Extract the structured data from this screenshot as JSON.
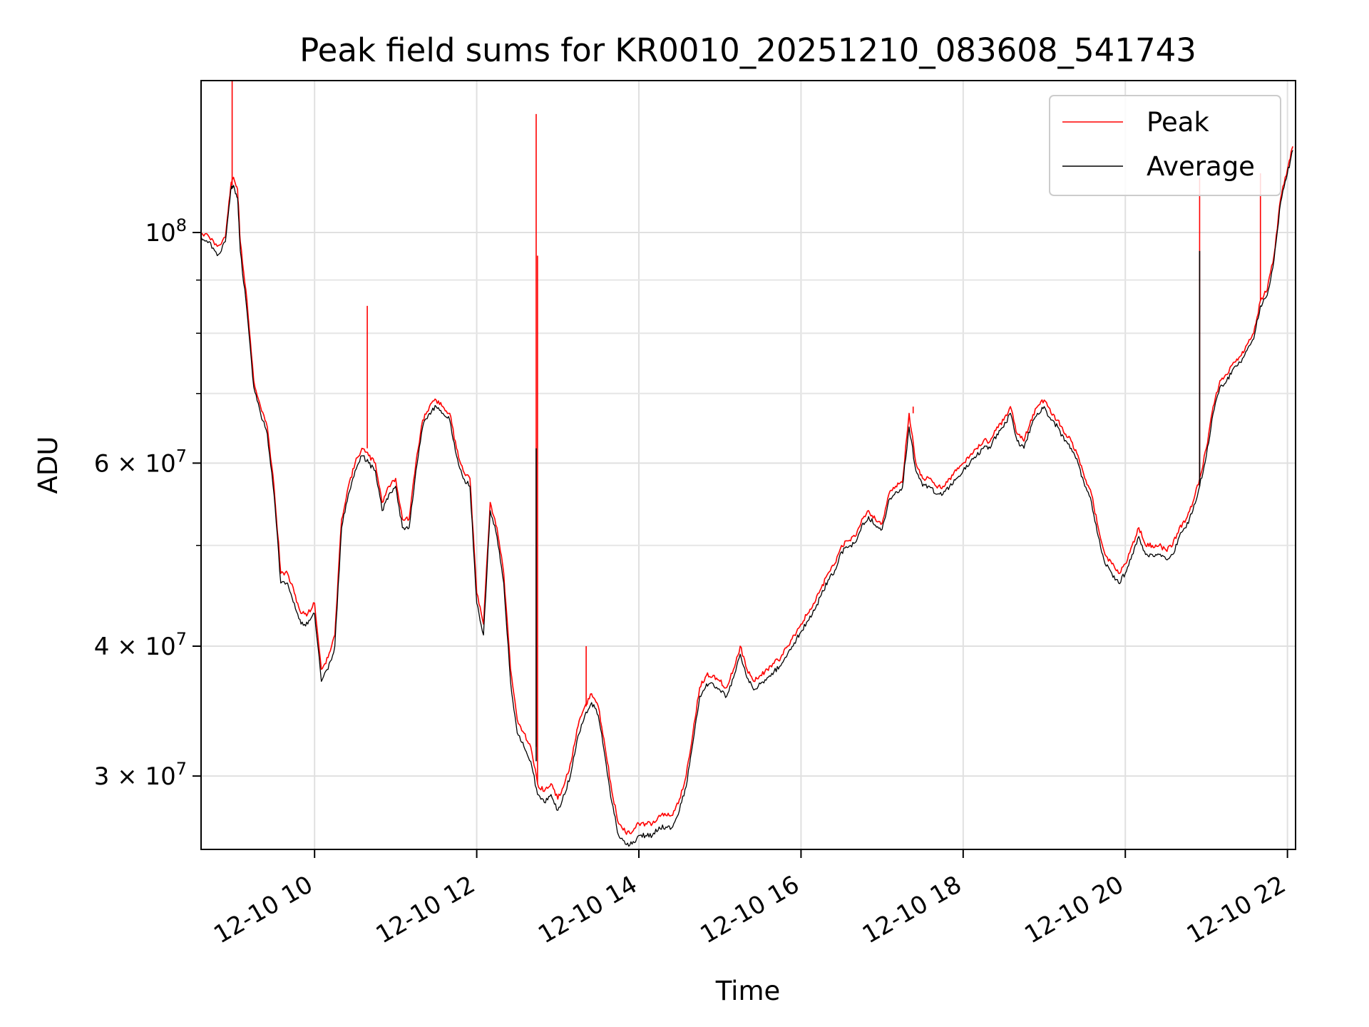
{
  "chart_data": {
    "type": "line",
    "title": "Peak field sums for KR0010_20251210_083608_541743",
    "xlabel": "Time",
    "ylabel": "ADU",
    "yscale": "log",
    "grid": true,
    "legend_position": "top-right",
    "xlim": [
      "12-10 08:36",
      "12-10 22:06"
    ],
    "ylim": [
      25500000,
      140000000
    ],
    "x_ticks": [
      {
        "value": "12-10 10:00",
        "label": "12-10 10"
      },
      {
        "value": "12-10 12:00",
        "label": "12-10 12"
      },
      {
        "value": "12-10 14:00",
        "label": "12-10 14"
      },
      {
        "value": "12-10 16:00",
        "label": "12-10 16"
      },
      {
        "value": "12-10 18:00",
        "label": "12-10 18"
      },
      {
        "value": "12-10 20:00",
        "label": "12-10 20"
      },
      {
        "value": "12-10 22:00",
        "label": "12-10 22"
      }
    ],
    "y_ticks": [
      {
        "value": 100000000,
        "mantissa": "",
        "exponent": "8",
        "base": "10"
      },
      {
        "value": 60000000,
        "mantissa": "6",
        "exponent": "7",
        "base": "10"
      },
      {
        "value": 40000000,
        "mantissa": "4",
        "exponent": "7",
        "base": "10"
      },
      {
        "value": 30000000,
        "mantissa": "3",
        "exponent": "7",
        "base": "10"
      }
    ],
    "y_minor_ticks": [
      50000000,
      70000000,
      80000000,
      90000000
    ],
    "x": [
      "12-10 08:36",
      "12-10 08:42",
      "12-10 08:48",
      "12-10 08:54",
      "12-10 08:58",
      "12-10 09:00",
      "12-10 09:03",
      "12-10 09:05",
      "12-10 09:10",
      "12-10 09:15",
      "12-10 09:20",
      "12-10 09:25",
      "12-10 09:30",
      "12-10 09:35",
      "12-10 09:40",
      "12-10 09:45",
      "12-10 09:50",
      "12-10 09:55",
      "12-10 10:00",
      "12-10 10:05",
      "12-10 10:10",
      "12-10 10:15",
      "12-10 10:20",
      "12-10 10:25",
      "12-10 10:30",
      "12-10 10:35",
      "12-10 10:40",
      "12-10 10:45",
      "12-10 10:50",
      "12-10 10:55",
      "12-10 11:00",
      "12-10 11:05",
      "12-10 11:10",
      "12-10 11:15",
      "12-10 11:20",
      "12-10 11:25",
      "12-10 11:30",
      "12-10 11:35",
      "12-10 11:40",
      "12-10 11:45",
      "12-10 11:50",
      "12-10 11:55",
      "12-10 12:00",
      "12-10 12:05",
      "12-10 12:10",
      "12-10 12:15",
      "12-10 12:20",
      "12-10 12:25",
      "12-10 12:30",
      "12-10 12:35",
      "12-10 12:40",
      "12-10 12:45",
      "12-10 12:50",
      "12-10 12:55",
      "12-10 13:00",
      "12-10 13:05",
      "12-10 13:10",
      "12-10 13:15",
      "12-10 13:20",
      "12-10 13:25",
      "12-10 13:30",
      "12-10 13:35",
      "12-10 13:40",
      "12-10 13:45",
      "12-10 13:50",
      "12-10 13:55",
      "12-10 14:00",
      "12-10 14:05",
      "12-10 14:10",
      "12-10 14:15",
      "12-10 14:20",
      "12-10 14:25",
      "12-10 14:30",
      "12-10 14:35",
      "12-10 14:40",
      "12-10 14:45",
      "12-10 14:50",
      "12-10 14:55",
      "12-10 15:00",
      "12-10 15:05",
      "12-10 15:10",
      "12-10 15:15",
      "12-10 15:20",
      "12-10 15:25",
      "12-10 15:30",
      "12-10 15:35",
      "12-10 15:40",
      "12-10 15:45",
      "12-10 15:50",
      "12-10 15:55",
      "12-10 16:00",
      "12-10 16:05",
      "12-10 16:10",
      "12-10 16:15",
      "12-10 16:20",
      "12-10 16:25",
      "12-10 16:30",
      "12-10 16:35",
      "12-10 16:40",
      "12-10 16:45",
      "12-10 16:50",
      "12-10 16:55",
      "12-10 17:00",
      "12-10 17:05",
      "12-10 17:10",
      "12-10 17:15",
      "12-10 17:20",
      "12-10 17:25",
      "12-10 17:30",
      "12-10 17:35",
      "12-10 17:40",
      "12-10 17:45",
      "12-10 17:50",
      "12-10 17:55",
      "12-10 18:00",
      "12-10 18:05",
      "12-10 18:10",
      "12-10 18:15",
      "12-10 18:20",
      "12-10 18:25",
      "12-10 18:30",
      "12-10 18:35",
      "12-10 18:40",
      "12-10 18:45",
      "12-10 18:50",
      "12-10 18:55",
      "12-10 19:00",
      "12-10 19:05",
      "12-10 19:10",
      "12-10 19:15",
      "12-10 19:20",
      "12-10 19:25",
      "12-10 19:30",
      "12-10 19:35",
      "12-10 19:40",
      "12-10 19:45",
      "12-10 19:50",
      "12-10 19:55",
      "12-10 20:00",
      "12-10 20:05",
      "12-10 20:10",
      "12-10 20:15",
      "12-10 20:20",
      "12-10 20:25",
      "12-10 20:30",
      "12-10 20:35",
      "12-10 20:40",
      "12-10 20:45",
      "12-10 20:50",
      "12-10 20:55",
      "12-10 21:00",
      "12-10 21:05",
      "12-10 21:10",
      "12-10 21:15",
      "12-10 21:20",
      "12-10 21:25",
      "12-10 21:30",
      "12-10 21:35",
      "12-10 21:40",
      "12-10 21:45",
      "12-10 21:50",
      "12-10 21:55",
      "12-10 22:00",
      "12-10 22:04"
    ],
    "series": [
      {
        "name": "Peak",
        "color": "#ff0000",
        "values": [
          100000000,
          99000000,
          97000000,
          99000000,
          111000000,
          113000000,
          110000000,
          98000000,
          86000000,
          72000000,
          68000000,
          65000000,
          57000000,
          47000000,
          47000000,
          45000000,
          43000000,
          43000000,
          44000000,
          38000000,
          39000000,
          41000000,
          53000000,
          57000000,
          60000000,
          62000000,
          61000000,
          60000000,
          55000000,
          57000000,
          58000000,
          53000000,
          53000000,
          60000000,
          66000000,
          68000000,
          69000000,
          68000000,
          67000000,
          62000000,
          59000000,
          58000000,
          45000000,
          42000000,
          55000000,
          52000000,
          47000000,
          38000000,
          34000000,
          33000000,
          32000000,
          29500000,
          29000000,
          29500000,
          28500000,
          29500000,
          31000000,
          33500000,
          35000000,
          36000000,
          35000000,
          32000000,
          29000000,
          27000000,
          26500000,
          26500000,
          27000000,
          27000000,
          27000000,
          27500000,
          27500000,
          27500000,
          28500000,
          30000000,
          33000000,
          36500000,
          37500000,
          37500000,
          37000000,
          36500000,
          38000000,
          40000000,
          38000000,
          37000000,
          37500000,
          38000000,
          38500000,
          39000000,
          40000000,
          41000000,
          42000000,
          43000000,
          44000000,
          45500000,
          47000000,
          48000000,
          50000000,
          50500000,
          51000000,
          53000000,
          54000000,
          53000000,
          52500000,
          56000000,
          57000000,
          57500000,
          67000000,
          60000000,
          58000000,
          58000000,
          57000000,
          57000000,
          58000000,
          59000000,
          60000000,
          61000000,
          62000000,
          63000000,
          63000000,
          65000000,
          66000000,
          68000000,
          64000000,
          63000000,
          66000000,
          68000000,
          69000000,
          67000000,
          66000000,
          64000000,
          63000000,
          61000000,
          58000000,
          56000000,
          52000000,
          49000000,
          48000000,
          47000000,
          48000000,
          50000000,
          52000000,
          50000000,
          50000000,
          50000000,
          49500000,
          50000000,
          52000000,
          53000000,
          55000000,
          58000000,
          62000000,
          68000000,
          72000000,
          73000000,
          75000000,
          76000000,
          78000000,
          80000000,
          86000000,
          88000000,
          95000000,
          108000000,
          115000000,
          121000000
        ],
        "spikes": [
          {
            "x": "12-10 08:59",
            "value": 140000000
          },
          {
            "x": "12-10 10:39",
            "value": 85000000
          },
          {
            "x": "12-10 12:44",
            "value": 130000000
          },
          {
            "x": "12-10 12:45",
            "value": 95000000
          },
          {
            "x": "12-10 13:21",
            "value": 40000000
          },
          {
            "x": "12-10 17:23",
            "value": 68000000
          },
          {
            "x": "12-10 20:55",
            "value": 113000000
          },
          {
            "x": "12-10 21:40",
            "value": 114000000
          }
        ]
      },
      {
        "name": "Average",
        "color": "#000000",
        "values": [
          99000000,
          98000000,
          95000000,
          98000000,
          110000000,
          111000000,
          108000000,
          96000000,
          84000000,
          71000000,
          67000000,
          64000000,
          56000000,
          46000000,
          46000000,
          44000000,
          42000000,
          42000000,
          43000000,
          37000000,
          38000000,
          40000000,
          52000000,
          56000000,
          59000000,
          61000000,
          60000000,
          59000000,
          54000000,
          56000000,
          57000000,
          52000000,
          52000000,
          59000000,
          65000000,
          67000000,
          68000000,
          67000000,
          66000000,
          61000000,
          58000000,
          57000000,
          44000000,
          41000000,
          54000000,
          51000000,
          46000000,
          37000000,
          33000000,
          32000000,
          31000000,
          28800000,
          28300000,
          28800000,
          27800000,
          28800000,
          30300000,
          32800000,
          34300000,
          35300000,
          34300000,
          31300000,
          28300000,
          26300000,
          25800000,
          25800000,
          26300000,
          26300000,
          26300000,
          26800000,
          26800000,
          26800000,
          27800000,
          29300000,
          32300000,
          35800000,
          36800000,
          36800000,
          36300000,
          35800000,
          37300000,
          39300000,
          37300000,
          36300000,
          36800000,
          37300000,
          37800000,
          38300000,
          39300000,
          40300000,
          41300000,
          42300000,
          43300000,
          44800000,
          46300000,
          47300000,
          49300000,
          49800000,
          50300000,
          52300000,
          53300000,
          52300000,
          51800000,
          55300000,
          56300000,
          56800000,
          65000000,
          59000000,
          57000000,
          57000000,
          56000000,
          56000000,
          57000000,
          58000000,
          59000000,
          60000000,
          61000000,
          62000000,
          62000000,
          64000000,
          65000000,
          67000000,
          63000000,
          62000000,
          65000000,
          67000000,
          68000000,
          66000000,
          65000000,
          63000000,
          62000000,
          60000000,
          57000000,
          55000000,
          51000000,
          48000000,
          47000000,
          46000000,
          47000000,
          49000000,
          51000000,
          49000000,
          49000000,
          49000000,
          48500000,
          49000000,
          51000000,
          52000000,
          54000000,
          57000000,
          61000000,
          67000000,
          71000000,
          72000000,
          74000000,
          75000000,
          77000000,
          79000000,
          85000000,
          87000000,
          94000000,
          107000000,
          114000000,
          120000000
        ],
        "spikes": [
          {
            "x": "12-10 12:44",
            "value": 62000000
          },
          {
            "x": "12-10 20:55",
            "value": 96000000
          }
        ]
      }
    ]
  }
}
